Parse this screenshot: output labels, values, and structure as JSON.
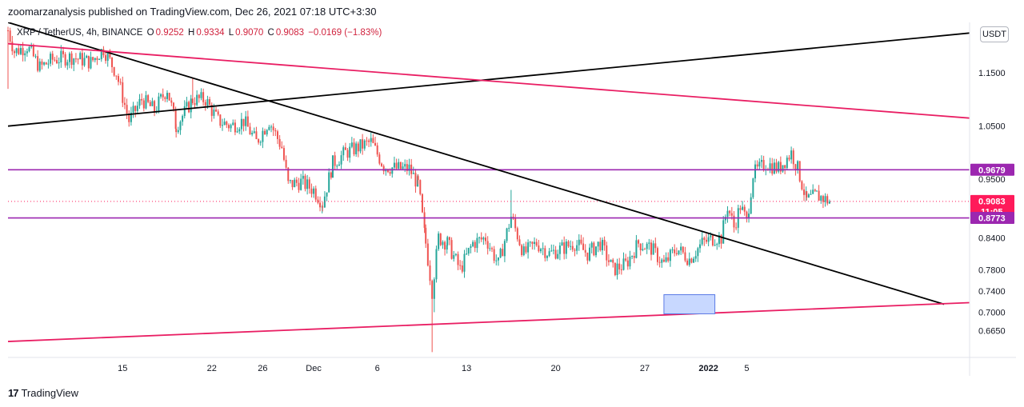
{
  "header": {
    "text": "zoomarzanalysis published on TradingView.com, Dec 26, 2021 07:18 UTC+3:30"
  },
  "symbol": {
    "name": "XRP / TetherUS, 4h, BINANCE",
    "open_label": "O",
    "open": "0.9252",
    "high_label": "H",
    "high": "0.9334",
    "low_label": "L",
    "low": "0.9070",
    "close_label": "C",
    "close": "0.9083",
    "change": "−0.0169 (−1.83%)"
  },
  "currency_button": "USDT",
  "footer": {
    "logo": "17",
    "brand": "TradingView"
  },
  "colors": {
    "up": "#26a69a",
    "down": "#ef5350",
    "black_line": "#000000",
    "pink_line": "#e91e63",
    "purple_line": "#9c27b0",
    "rect_fill": "#c8d8ff",
    "rect_stroke": "#5b7be6"
  },
  "chart_data": {
    "type": "candlestick",
    "title": "XRP / TetherUS, 4h, BINANCE",
    "y_range": [
      0.615,
      1.245
    ],
    "y_ticks": [
      {
        "value": 1.15,
        "label": "1.1500"
      },
      {
        "value": 1.05,
        "label": "1.0500"
      },
      {
        "value": 0.95,
        "label": "0.9500"
      },
      {
        "value": 0.84,
        "label": "0.8400"
      },
      {
        "value": 0.78,
        "label": "0.7800"
      },
      {
        "value": 0.74,
        "label": "0.7400"
      },
      {
        "value": 0.7,
        "label": "0.7000"
      },
      {
        "value": 0.665,
        "label": "0.6650"
      }
    ],
    "x_range_days": [
      0,
      75.5
    ],
    "x_ticks": [
      {
        "day": 9,
        "label": "15"
      },
      {
        "day": 16,
        "label": "22"
      },
      {
        "day": 20,
        "label": "26"
      },
      {
        "day": 24,
        "label": "Dec"
      },
      {
        "day": 29,
        "label": "6"
      },
      {
        "day": 36,
        "label": "13"
      },
      {
        "day": 43,
        "label": "20"
      },
      {
        "day": 50,
        "label": "27"
      },
      {
        "day": 55,
        "label": "2022"
      },
      {
        "day": 58,
        "label": "5"
      }
    ],
    "badges": [
      {
        "value": 0.9679,
        "label": "0.9679",
        "color": "#9c27b0"
      },
      {
        "value": 0.9083,
        "label": "0.9083",
        "sub": "11:05",
        "color": "#ff1a5a"
      },
      {
        "value": 0.8773,
        "label": "0.8773",
        "color": "#9c27b0"
      }
    ],
    "horizontal_lines": [
      {
        "value": 0.9679,
        "color": "#9c27b0"
      },
      {
        "value": 0.8773,
        "color": "#9c27b0"
      }
    ],
    "last_price": 0.9083,
    "trend_lines": [
      {
        "name": "upper-rising-black",
        "color": "#000000",
        "p1": {
          "day": 0,
          "value": 1.05
        },
        "p2": {
          "day": 75.5,
          "value": 1.225
        }
      },
      {
        "name": "falling-black",
        "color": "#000000",
        "p1": {
          "day": 0,
          "value": 1.245
        },
        "p2": {
          "day": 73.5,
          "value": 0.715
        }
      },
      {
        "name": "upper-pink-resistance",
        "color": "#e91e63",
        "p1": {
          "day": 0,
          "value": 1.205
        },
        "p2": {
          "day": 75.5,
          "value": 1.065
        }
      },
      {
        "name": "lower-pink-support",
        "color": "#e91e63",
        "p1": {
          "day": 0,
          "value": 0.645
        },
        "p2": {
          "day": 75.5,
          "value": 0.718
        }
      }
    ],
    "rectangle": {
      "day_start": 51.5,
      "day_end": 55.5,
      "value_top": 0.733,
      "value_bottom": 0.697
    },
    "series": {
      "name": "XRP/USDT 4h",
      "anchors": [
        [
          0.0,
          1.23
        ],
        [
          0.5,
          1.19
        ],
        [
          1.5,
          1.2
        ],
        [
          2.5,
          1.16
        ],
        [
          3.5,
          1.175
        ],
        [
          5.0,
          1.18
        ],
        [
          6.5,
          1.17
        ],
        [
          7.5,
          1.195
        ],
        [
          8.5,
          1.15
        ],
        [
          9.5,
          1.06
        ],
        [
          10.5,
          1.1
        ],
        [
          11.5,
          1.08
        ],
        [
          12.5,
          1.12
        ],
        [
          13.2,
          1.05
        ],
        [
          14.5,
          1.1
        ],
        [
          15.5,
          1.1
        ],
        [
          16.5,
          1.06
        ],
        [
          17.5,
          1.05
        ],
        [
          18.5,
          1.06
        ],
        [
          19.5,
          1.02
        ],
        [
          20.5,
          1.06
        ],
        [
          21.5,
          1.01
        ],
        [
          22.0,
          0.94
        ],
        [
          23.0,
          0.945
        ],
        [
          24.0,
          0.93
        ],
        [
          24.7,
          0.905
        ],
        [
          25.5,
          0.98
        ],
        [
          26.5,
          1.0
        ],
        [
          27.5,
          1.01
        ],
        [
          28.5,
          1.02
        ],
        [
          29.5,
          0.975
        ],
        [
          30.5,
          0.97
        ],
        [
          31.5,
          0.97
        ],
        [
          32.2,
          0.94
        ],
        [
          32.8,
          0.83
        ],
        [
          33.3,
          0.74
        ],
        [
          33.8,
          0.84
        ],
        [
          34.5,
          0.83
        ],
        [
          35.5,
          0.78
        ],
        [
          36.5,
          0.83
        ],
        [
          37.5,
          0.84
        ],
        [
          38.5,
          0.79
        ],
        [
          39.5,
          0.88
        ],
        [
          40.5,
          0.81
        ],
        [
          41.5,
          0.83
        ],
        [
          42.5,
          0.81
        ],
        [
          43.5,
          0.82
        ],
        [
          44.5,
          0.83
        ],
        [
          45.5,
          0.81
        ],
        [
          46.5,
          0.83
        ],
        [
          47.5,
          0.78
        ],
        [
          48.5,
          0.79
        ],
        [
          49.5,
          0.83
        ],
        [
          50.5,
          0.82
        ],
        [
          51.5,
          0.79
        ],
        [
          52.5,
          0.82
        ],
        [
          53.5,
          0.8
        ],
        [
          54.5,
          0.83
        ],
        [
          55.5,
          0.84
        ],
        [
          56.0,
          0.84
        ],
        [
          56.5,
          0.9
        ],
        [
          57.0,
          0.86
        ],
        [
          57.5,
          0.9
        ],
        [
          58.0,
          0.87
        ],
        [
          58.5,
          0.96
        ],
        [
          59.5,
          0.98
        ],
        [
          60.5,
          0.97
        ],
        [
          61.5,
          1.0
        ],
        [
          62.0,
          0.97
        ],
        [
          62.7,
          0.91
        ],
        [
          63.5,
          0.92
        ],
        [
          64.5,
          0.9083
        ]
      ]
    }
  }
}
